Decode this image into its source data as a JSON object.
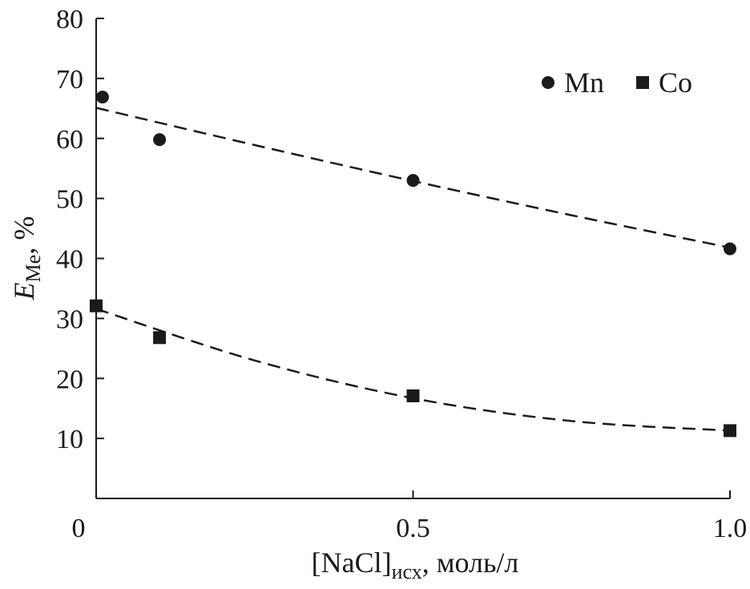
{
  "chart_data": {
    "type": "scatter",
    "xlabel": {
      "main": "[NaCl]",
      "sub": "исх",
      "suffix": ", моль/л"
    },
    "ylabel": {
      "main": "E",
      "sub": "Me",
      "suffix": ", %"
    },
    "xlim": [
      0,
      1.0
    ],
    "ylim": [
      0,
      80
    ],
    "x_ticks": [
      0,
      0.5,
      1.0
    ],
    "x_tick_labels": [
      "0",
      "0.5",
      "1.0"
    ],
    "y_ticks": [
      10,
      20,
      30,
      40,
      50,
      60,
      70,
      80
    ],
    "y_tick_labels": [
      "10",
      "20",
      "30",
      "40",
      "50",
      "60",
      "70",
      "80"
    ],
    "grid": false,
    "legend_position": "top-right",
    "series": [
      {
        "name": "Mn",
        "marker": "circle",
        "color": "#1a1a1a",
        "x": [
          0.01,
          0.1,
          0.5,
          1.0
        ],
        "y": [
          66.9,
          59.8,
          53.0,
          41.6
        ],
        "trendline": {
          "style": "dashed",
          "x": [
            0.0,
            0.25,
            0.5,
            0.75,
            1.0
          ],
          "y": [
            65.1,
            58.9,
            52.9,
            47.2,
            41.8
          ]
        }
      },
      {
        "name": "Co",
        "marker": "square",
        "color": "#1a1a1a",
        "x": [
          0.0,
          0.1,
          0.5,
          1.0
        ],
        "y": [
          32.1,
          26.8,
          17.1,
          11.3
        ],
        "trendline": {
          "style": "dashed",
          "x": [
            0.0,
            0.25,
            0.5,
            0.75,
            1.0
          ],
          "y": [
            31.6,
            23.0,
            16.7,
            12.9,
            11.3
          ]
        }
      }
    ]
  }
}
